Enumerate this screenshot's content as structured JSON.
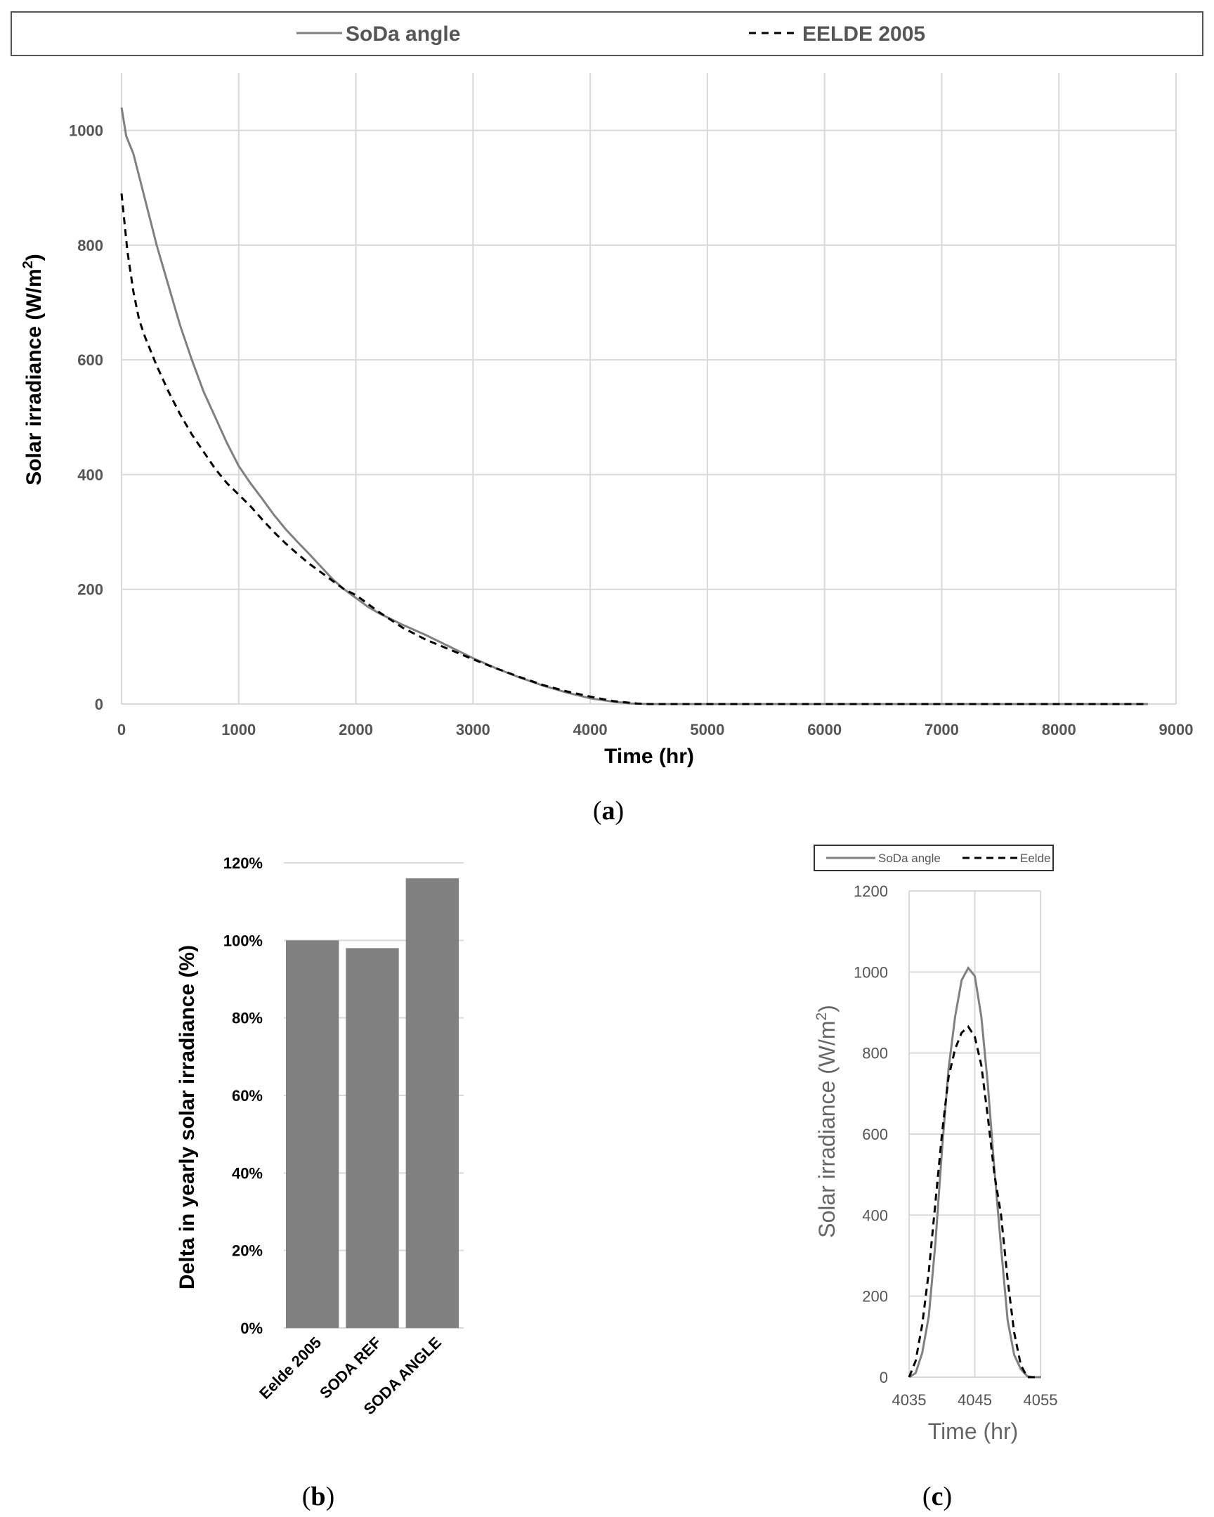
{
  "chart_data": [
    {
      "panel": "a",
      "panel_label": "(a)",
      "panel_open": "(",
      "panel_letter": "a",
      "panel_close": ")",
      "type": "line",
      "title": "",
      "xlabel": "Time (hr)",
      "ylabel": "Solar irradiance (W/m²)",
      "ylabel_main": "Solar irradiance (W/m",
      "ylabel_sup": "2",
      "ylabel_close": ")",
      "xlim": [
        0,
        9000
      ],
      "ylim": [
        0,
        1100
      ],
      "xticks": [
        "0",
        "1000",
        "2000",
        "3000",
        "4000",
        "5000",
        "6000",
        "7000",
        "8000",
        "9000"
      ],
      "yticks": [
        "0",
        "200",
        "400",
        "600",
        "800",
        "1000"
      ],
      "legend": [
        "SoDa angle",
        "EELDE 2005"
      ],
      "legend_position": "top",
      "grid": true,
      "series": [
        {
          "name": "SoDa angle",
          "style": "solid",
          "color": "#808080",
          "x": [
            0,
            40,
            100,
            200,
            300,
            400,
            500,
            600,
            700,
            800,
            900,
            1000,
            1100,
            1200,
            1300,
            1400,
            1500,
            1600,
            1700,
            1800,
            1900,
            2000,
            2100,
            2200,
            2400,
            2600,
            2800,
            3000,
            3200,
            3400,
            3600,
            3800,
            4000,
            4200,
            4350,
            4500,
            5000,
            6000,
            7000,
            8000,
            8760
          ],
          "y": [
            1040,
            990,
            960,
            880,
            800,
            730,
            660,
            600,
            545,
            500,
            455,
            415,
            385,
            358,
            330,
            305,
            283,
            262,
            240,
            218,
            200,
            185,
            170,
            158,
            138,
            120,
            100,
            80,
            62,
            46,
            32,
            20,
            10,
            4,
            1,
            0,
            0,
            0,
            0,
            0,
            0
          ]
        },
        {
          "name": "EELDE 2005",
          "style": "dashed",
          "color": "#000000",
          "x": [
            0,
            50,
            100,
            150,
            200,
            300,
            400,
            500,
            600,
            700,
            800,
            900,
            1000,
            1100,
            1200,
            1300,
            1400,
            1500,
            1600,
            1700,
            1800,
            1900,
            2000,
            2200,
            2400,
            2600,
            2800,
            3000,
            3200,
            3400,
            3600,
            3800,
            4000,
            4200,
            4400,
            4500,
            5000,
            6000,
            7000,
            8000,
            8760
          ],
          "y": [
            890,
            790,
            720,
            670,
            640,
            590,
            545,
            505,
            470,
            440,
            410,
            385,
            365,
            345,
            322,
            300,
            280,
            262,
            245,
            230,
            215,
            200,
            190,
            160,
            133,
            112,
            95,
            78,
            62,
            47,
            33,
            22,
            13,
            5,
            1,
            0,
            0,
            0,
            0,
            0,
            0
          ]
        }
      ]
    },
    {
      "panel": "b",
      "panel_label": "(b)",
      "panel_open": "(",
      "panel_letter": "b",
      "panel_close": ")",
      "type": "bar",
      "title": "",
      "xlabel": "",
      "ylabel": "Delta in yearly solar irradiance (%)",
      "ylim": [
        0,
        1.2
      ],
      "yticks": [
        "0%",
        "20%",
        "40%",
        "60%",
        "80%",
        "100%",
        "120%"
      ],
      "categories": [
        "Eelde 2005",
        "SODA REF",
        "SODA ANGLE"
      ],
      "values": [
        1.0,
        0.98,
        1.16
      ],
      "bar_color": "#808080",
      "grid": true
    },
    {
      "panel": "c",
      "panel_label": "(c)",
      "panel_open": "(",
      "panel_letter": "c",
      "panel_close": ")",
      "type": "line",
      "title": "",
      "xlabel": "Time (hr)",
      "ylabel": "Solar irradiance (W/m²)",
      "ylabel_main": "Solar irradiance (W/m",
      "ylabel_sup": "2",
      "ylabel_close": ")",
      "xlim": [
        4035,
        4055
      ],
      "ylim": [
        0,
        1200
      ],
      "xticks": [
        "4035",
        "4045",
        "4055"
      ],
      "yticks": [
        "0",
        "200",
        "400",
        "600",
        "800",
        "1000",
        "1200"
      ],
      "legend": [
        "SoDa angle",
        "Eelde"
      ],
      "legend_position": "top",
      "grid": true,
      "series": [
        {
          "name": "SoDa angle",
          "style": "solid",
          "color": "#808080",
          "x": [
            4035,
            4036,
            4037,
            4038,
            4039,
            4040,
            4041,
            4042,
            4043,
            4044,
            4045,
            4046,
            4047,
            4048,
            4049,
            4050,
            4051,
            4052,
            4053,
            4054,
            4055
          ],
          "y": [
            0,
            10,
            60,
            150,
            330,
            560,
            760,
            890,
            980,
            1010,
            990,
            890,
            720,
            510,
            320,
            140,
            55,
            20,
            2,
            0,
            0
          ]
        },
        {
          "name": "Eelde",
          "style": "dashed",
          "color": "#000000",
          "x": [
            4035,
            4036,
            4037,
            4038,
            4039,
            4040,
            4041,
            4042,
            4043,
            4044,
            4045,
            4046,
            4047,
            4048,
            4049,
            4050,
            4051,
            4052,
            4053,
            4054,
            4055
          ],
          "y": [
            0,
            40,
            130,
            260,
            430,
            600,
            740,
            810,
            850,
            865,
            840,
            770,
            640,
            500,
            400,
            240,
            110,
            30,
            0,
            0,
            0
          ]
        }
      ]
    }
  ]
}
